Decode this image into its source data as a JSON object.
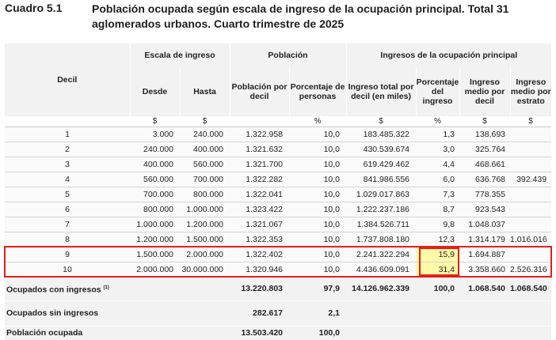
{
  "heading": {
    "label": "Cuadro 5.1",
    "title": "Población ocupada según escala de ingreso de la ocupación principal. Total 31 aglomerados urbanos. Cuarto trimestre de 2025"
  },
  "table": {
    "header_groups": {
      "decil": "Decil",
      "escala": "Escala de ingreso",
      "poblacion": "Población",
      "ingresos": "Ingresos de la ocupación principal"
    },
    "columns": {
      "desde": "Desde",
      "hasta": "Hasta",
      "pob_decil": "Población por decil",
      "pct_personas": "Porcentaje de personas",
      "ing_total": "Ingreso total por decil (en miles)",
      "pct_ingreso": "Porcentaje del ingreso",
      "ing_medio_decil": "Ingreso medio por decil",
      "ing_medio_estrato": "Ingreso medio por estrato"
    },
    "units": [
      "$",
      "$",
      "",
      "%",
      "$",
      "%",
      "$",
      "$"
    ],
    "rows": [
      {
        "decil": "1",
        "desde": "3.000",
        "hasta": "240.000",
        "pob": "1.322.958",
        "pct": "10,0",
        "ing_total": "183.485.322",
        "pct_ing": "1,3",
        "medio_decil": "138.693",
        "medio_estrato": ""
      },
      {
        "decil": "2",
        "desde": "240.000",
        "hasta": "400.000",
        "pob": "1.321.632",
        "pct": "10,0",
        "ing_total": "430.539.674",
        "pct_ing": "3,0",
        "medio_decil": "325.764",
        "medio_estrato": ""
      },
      {
        "decil": "3",
        "desde": "400.000",
        "hasta": "560.000",
        "pob": "1.321.700",
        "pct": "10,0",
        "ing_total": "619.429.462",
        "pct_ing": "4,4",
        "medio_decil": "468.661",
        "medio_estrato": ""
      },
      {
        "decil": "4",
        "desde": "560.000",
        "hasta": "700.000",
        "pob": "1.322.282",
        "pct": "10,0",
        "ing_total": "841.986.556",
        "pct_ing": "6,0",
        "medio_decil": "636.768",
        "medio_estrato": "392.439"
      },
      {
        "decil": "5",
        "desde": "700.000",
        "hasta": "800.000",
        "pob": "1.322.041",
        "pct": "10,0",
        "ing_total": "1.029.017.863",
        "pct_ing": "7,3",
        "medio_decil": "778.355",
        "medio_estrato": ""
      },
      {
        "decil": "6",
        "desde": "800.000",
        "hasta": "1.000.000",
        "pob": "1.323.422",
        "pct": "10,0",
        "ing_total": "1.222.237.186",
        "pct_ing": "8,7",
        "medio_decil": "923.543",
        "medio_estrato": ""
      },
      {
        "decil": "7",
        "desde": "1.000.000",
        "hasta": "1.200.000",
        "pob": "1.321.067",
        "pct": "10,0",
        "ing_total": "1.384.526.711",
        "pct_ing": "9,8",
        "medio_decil": "1.048.037",
        "medio_estrato": ""
      },
      {
        "decil": "8",
        "desde": "1.200.000",
        "hasta": "1.500.000",
        "pob": "1.322.353",
        "pct": "10,0",
        "ing_total": "1.737.808.180",
        "pct_ing": "12,3",
        "medio_decil": "1.314.179",
        "medio_estrato": "1.016.016"
      },
      {
        "decil": "9",
        "desde": "1.500.000",
        "hasta": "2.000.000",
        "pob": "1.322.402",
        "pct": "10,0",
        "ing_total": "2.241.322.294",
        "pct_ing": "15,9",
        "medio_decil": "1.694.887",
        "medio_estrato": ""
      },
      {
        "decil": "10",
        "desde": "2.000.000",
        "hasta": "30.000.000",
        "pob": "1.320.946",
        "pct": "10,0",
        "ing_total": "4.436.609.091",
        "pct_ing": "31,4",
        "medio_decil": "3.358.660",
        "medio_estrato": "2.526.316"
      }
    ],
    "totals": {
      "ocupados_con": {
        "label": "Ocupados con ingresos",
        "note": "(1)",
        "pob": "13.220.803",
        "pct": "97,9",
        "ing_total": "14.126.962.339",
        "pct_ing": "100,0",
        "medio_decil": "1.068.540",
        "medio_estrato": "1.068.540"
      },
      "ocupados_sin": {
        "label": "Ocupados sin ingresos",
        "pob": "282.617",
        "pct": "2,1"
      },
      "poblacion": {
        "label": "Población ocupada",
        "pob": "13.503.420",
        "pct": "100,0"
      }
    }
  },
  "highlight": {
    "box_color": "#e0201a",
    "cell_fill": "#fff9a8"
  }
}
